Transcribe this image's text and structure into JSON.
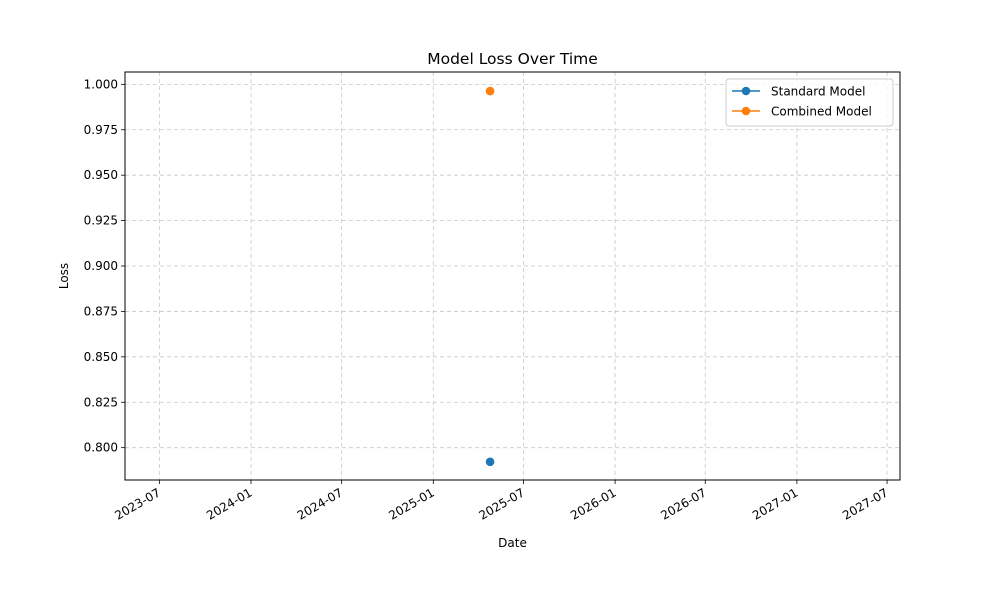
{
  "chart_data": {
    "type": "scatter",
    "title": "Model Loss Over Time",
    "xlabel": "Date",
    "ylabel": "Loss",
    "x_ticks": [
      "2023-07",
      "2024-01",
      "2024-07",
      "2025-01",
      "2025-07",
      "2026-01",
      "2026-07",
      "2027-01",
      "2027-07"
    ],
    "y_ticks": [
      0.8,
      0.825,
      0.85,
      0.875,
      0.9,
      0.925,
      0.95,
      0.975,
      1.0
    ],
    "y_tick_labels": [
      "0.800",
      "0.825",
      "0.850",
      "0.875",
      "0.900",
      "0.925",
      "0.950",
      "0.975",
      "1.000"
    ],
    "xlim": [
      "2023-04-23",
      "2027-07-27"
    ],
    "ylim": [
      0.7822,
      1.0068
    ],
    "grid": true,
    "legend_position": "top-right",
    "series": [
      {
        "name": "Standard Model",
        "color": "#1f77b4",
        "points": [
          {
            "x": "2025-04-25",
            "y": 0.7922
          }
        ]
      },
      {
        "name": "Combined Model",
        "color": "#ff7f0e",
        "points": [
          {
            "x": "2025-04-25",
            "y": 0.9963
          }
        ]
      }
    ]
  }
}
